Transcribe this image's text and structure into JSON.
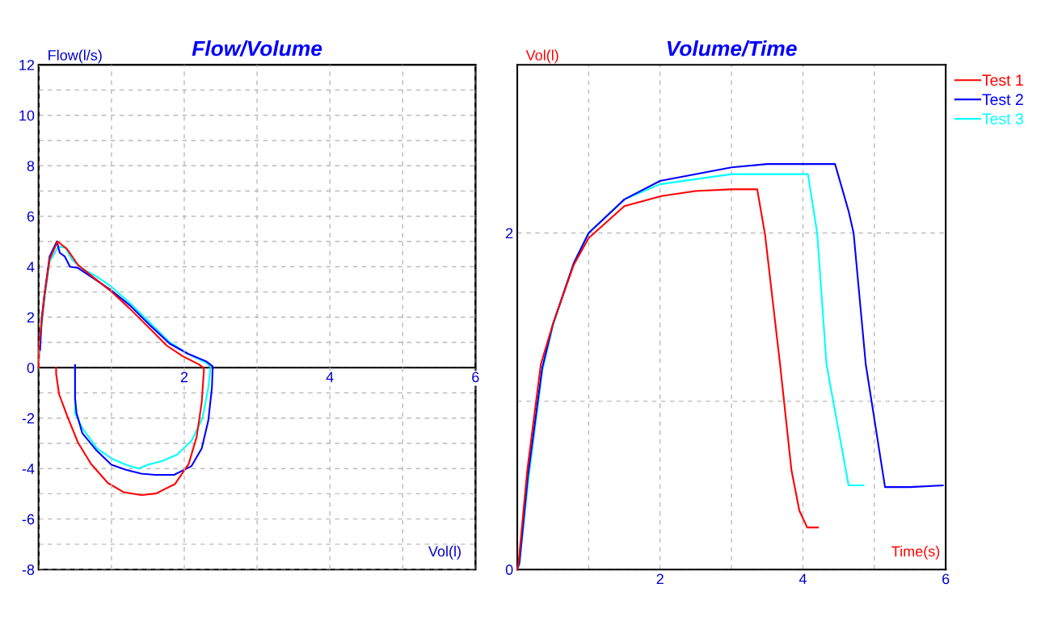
{
  "chart_data": [
    {
      "type": "line",
      "title": "Flow/Volume",
      "xlabel": "Vol(l)",
      "ylabel": "Flow(l/s)",
      "xlim": [
        0,
        6
      ],
      "ylim": [
        -8,
        12
      ],
      "xticks": [
        {
          "value": 0,
          "label": null
        },
        {
          "value": 1,
          "label": null
        },
        2,
        {
          "value": 3,
          "label": null
        },
        4,
        {
          "value": 5,
          "label": null
        },
        6
      ],
      "yticks": [
        -8,
        {
          "value": -7,
          "label": null
        },
        -6,
        {
          "value": -5,
          "label": null
        },
        -4,
        {
          "value": -3,
          "label": null
        },
        -2,
        {
          "value": -1,
          "label": null
        },
        0,
        {
          "value": 1,
          "label": null
        },
        2,
        {
          "value": 3,
          "label": null
        },
        4,
        {
          "value": 5,
          "label": null
        },
        6,
        {
          "value": 7,
          "label": null
        },
        8,
        {
          "value": 9,
          "label": null
        },
        10,
        {
          "value": 11,
          "label": null
        },
        12
      ],
      "grid": true,
      "legend": false,
      "series": [
        {
          "color": "#ff0000",
          "x": [
            0,
            0.01,
            0.08,
            0.15,
            0.26,
            0.39,
            0.54,
            0.72,
            0.98,
            1.24,
            1.54,
            1.76,
            1.98,
            2.2,
            2.26,
            2.27,
            2.24,
            2.17,
            2.06,
            1.87,
            1.61,
            1.41,
            1.17,
            0.95,
            0.72,
            0.54,
            0.39,
            0.28,
            0.24,
            0.24
          ],
          "values": [
            0,
            1.0,
            2.9,
            4.3,
            5.0,
            4.7,
            4.07,
            3.65,
            3.06,
            2.37,
            1.51,
            0.87,
            0.45,
            0.13,
            0,
            -0.1,
            -1.37,
            -2.75,
            -3.82,
            -4.62,
            -4.99,
            -5.05,
            -4.94,
            -4.57,
            -3.82,
            -2.97,
            -1.9,
            -1.05,
            -0.25,
            0
          ]
        },
        {
          "color": "#0000ff",
          "x": [
            0.02,
            0.04,
            0.08,
            0.15,
            0.25,
            0.29,
            0.36,
            0.43,
            0.54,
            0.72,
            0.98,
            1.24,
            1.54,
            1.8,
            2.05,
            2.3,
            2.39,
            2.39,
            2.38,
            2.33,
            2.24,
            2.1,
            1.86,
            1.6,
            1.41,
            1.2,
            1.0,
            0.8,
            0.6,
            0.52,
            0.5,
            0.5,
            0.5
          ],
          "values": [
            0.7,
            1.9,
            2.9,
            4.4,
            5.0,
            4.55,
            4.4,
            4.0,
            3.95,
            3.6,
            3.1,
            2.5,
            1.65,
            0.95,
            0.55,
            0.25,
            0.05,
            0,
            -0.8,
            -2.1,
            -3.2,
            -3.9,
            -4.25,
            -4.25,
            -4.2,
            -4.05,
            -3.85,
            -3.3,
            -2.6,
            -1.8,
            -1.2,
            -0.7,
            0.1
          ]
        },
        {
          "color": "#00ffff",
          "x": [
            0,
            0.01,
            0.08,
            0.15,
            0.27,
            0.37,
            0.45,
            0.58,
            0.8,
            1.0,
            1.24,
            1.54,
            1.8,
            2.05,
            2.3,
            2.36,
            2.36,
            2.33,
            2.25,
            2.1,
            1.9,
            1.7,
            1.5,
            1.37,
            1.2,
            1.0,
            0.8,
            0.6,
            0.5,
            0.5
          ],
          "values": [
            0,
            0.8,
            2.7,
            4.2,
            4.8,
            4.75,
            4.3,
            3.95,
            3.6,
            3.2,
            2.6,
            1.75,
            1.0,
            0.55,
            0.2,
            0.05,
            0,
            -0.8,
            -2.0,
            -2.9,
            -3.45,
            -3.7,
            -3.85,
            -4.0,
            -3.85,
            -3.6,
            -3.2,
            -2.4,
            -1.8,
            0.1
          ]
        }
      ]
    },
    {
      "type": "line",
      "title": "Volume/Time",
      "xlabel": "Time(s)",
      "ylabel": "Vol(l)",
      "xlim": [
        0,
        6
      ],
      "ylim": [
        0,
        3
      ],
      "xticks": [
        {
          "value": 0,
          "label": null
        },
        {
          "value": 1,
          "label": null
        },
        2,
        {
          "value": 3,
          "label": null
        },
        4,
        {
          "value": 5,
          "label": null
        },
        6
      ],
      "yticks": [
        0,
        {
          "value": 1,
          "label": null
        },
        2
      ],
      "grid": true,
      "legend": "top right",
      "series": [
        {
          "name": "Test 1",
          "color": "#ff0000",
          "x": [
            0,
            0.02,
            0.14,
            0.33,
            0.5,
            0.79,
            1.0,
            1.5,
            2.02,
            2.5,
            3.0,
            3.36,
            3.47,
            3.68,
            3.84,
            3.95,
            4.06,
            4.21
          ],
          "values": [
            0,
            0.05,
            0.59,
            1.22,
            1.46,
            1.81,
            1.97,
            2.16,
            2.22,
            2.25,
            2.26,
            2.26,
            1.99,
            1.22,
            0.59,
            0.35,
            0.25,
            0.25
          ]
        },
        {
          "name": "Test 2",
          "color": "#0000ff",
          "x": [
            0,
            0.03,
            0.15,
            0.35,
            0.5,
            0.79,
            1.0,
            1.5,
            2.0,
            3.0,
            3.5,
            4.45,
            4.64,
            4.71,
            4.88,
            5.15,
            5.5,
            5.96
          ],
          "values": [
            0,
            0.04,
            0.56,
            1.2,
            1.46,
            1.82,
            2.0,
            2.2,
            2.31,
            2.39,
            2.41,
            2.41,
            2.13,
            2.0,
            1.22,
            0.49,
            0.49,
            0.5
          ]
        },
        {
          "name": "Test 3",
          "color": "#00ffff",
          "x": [
            0,
            0.03,
            0.16,
            0.35,
            0.5,
            0.79,
            1.0,
            1.5,
            2.0,
            3.0,
            4.07,
            4.2,
            4.33,
            4.64,
            4.85
          ],
          "values": [
            0,
            0.03,
            0.55,
            1.18,
            1.45,
            1.82,
            2.0,
            2.2,
            2.29,
            2.35,
            2.35,
            2.0,
            1.22,
            0.5,
            0.5
          ]
        }
      ]
    }
  ]
}
